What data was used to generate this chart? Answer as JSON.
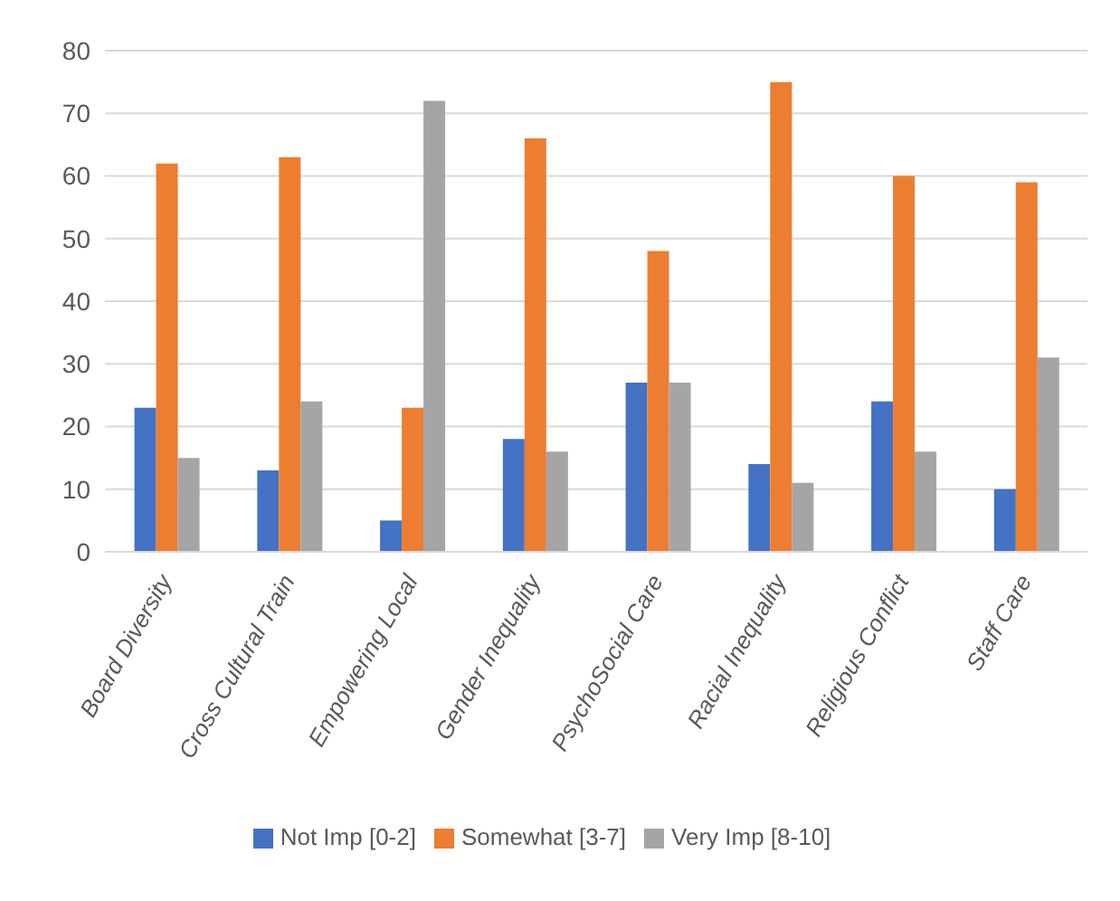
{
  "chart_data": {
    "type": "bar",
    "categories": [
      "Board Diversity",
      "Cross Cultural Train",
      "Empowering Local",
      "Gender Inequality",
      "PsychoSocial Care",
      "Racial Inequality",
      "Religious Conflict",
      "Staff Care"
    ],
    "series": [
      {
        "name": "Not Imp [0-2]",
        "color": "#4472c4",
        "values": [
          23,
          13,
          5,
          18,
          27,
          14,
          24,
          10
        ]
      },
      {
        "name": "Somewhat [3-7]",
        "color": "#ed7d31",
        "values": [
          62,
          63,
          23,
          66,
          48,
          75,
          60,
          59
        ]
      },
      {
        "name": "Very Imp [8-10]",
        "color": "#a5a5a5",
        "values": [
          15,
          24,
          72,
          16,
          27,
          11,
          16,
          31
        ]
      }
    ],
    "ylim": [
      0,
      80
    ],
    "yticks": [
      0,
      10,
      20,
      30,
      40,
      50,
      60,
      70,
      80
    ],
    "grid": "y",
    "legend": "bottom"
  }
}
